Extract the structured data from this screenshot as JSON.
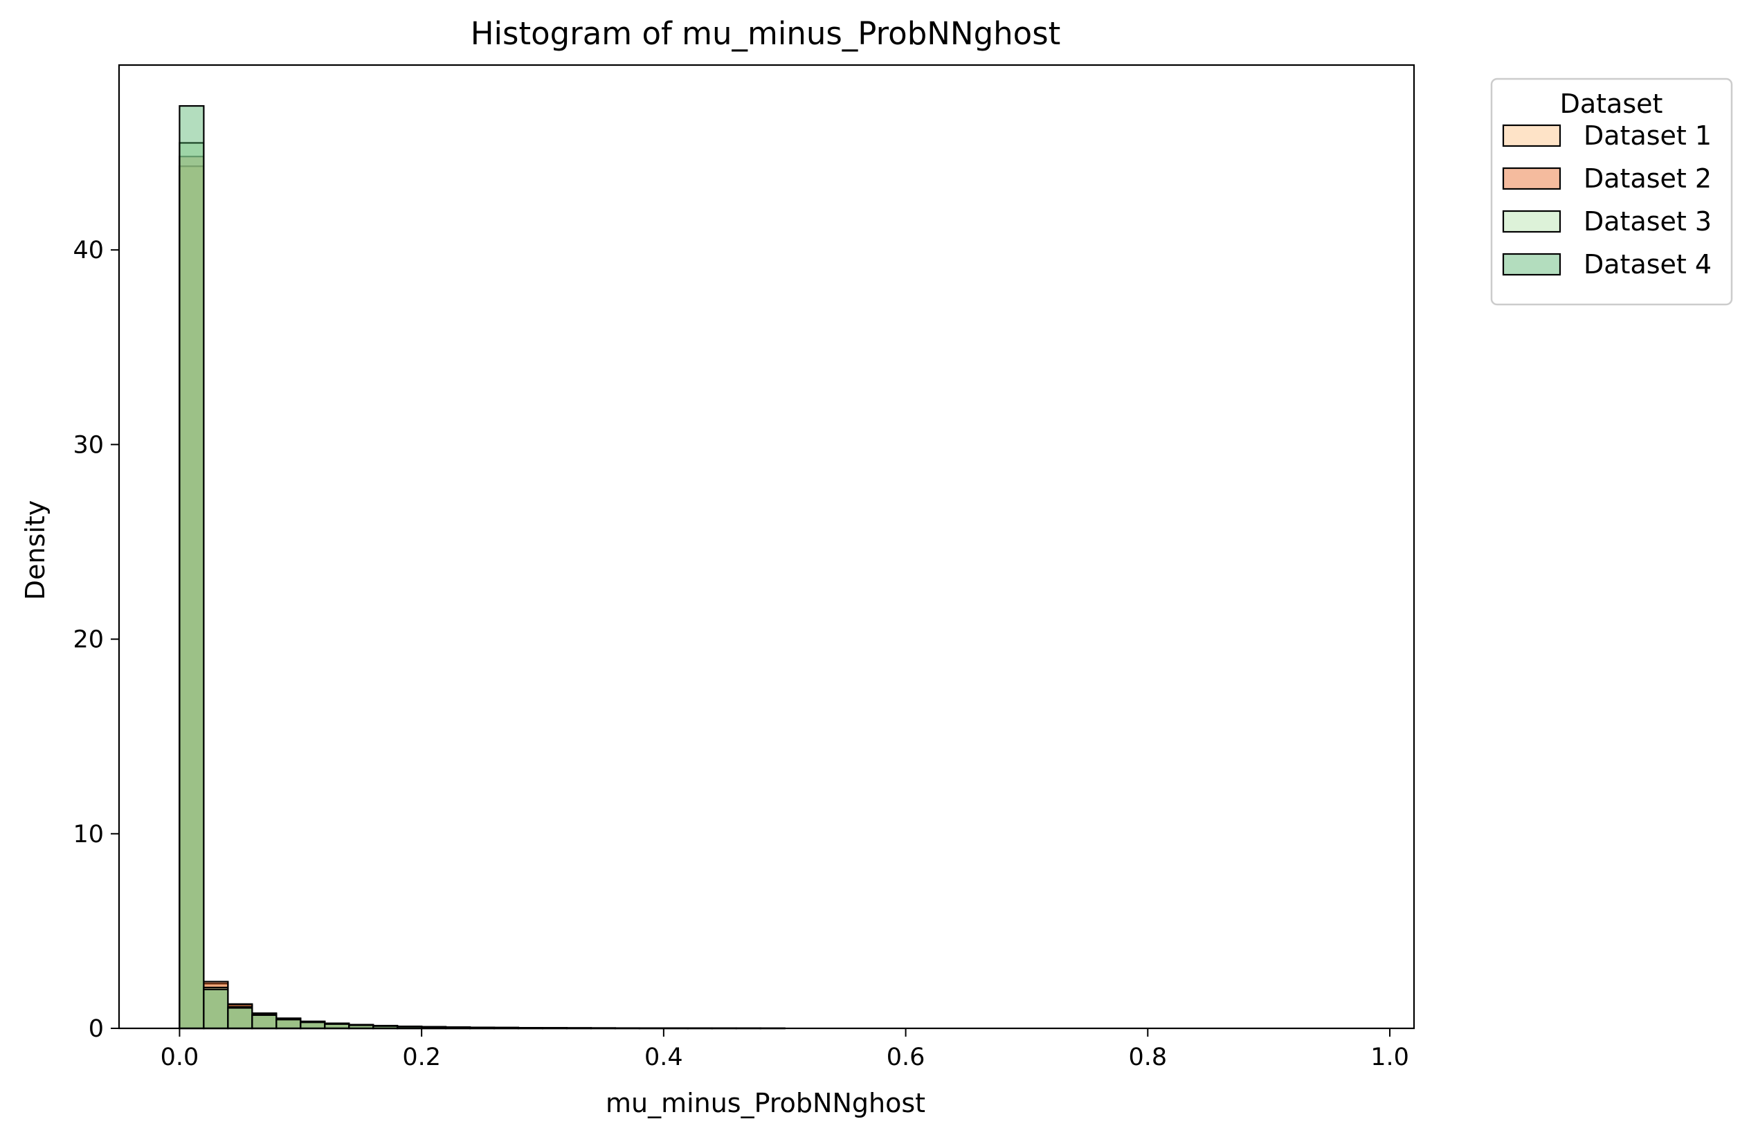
{
  "chart_data": {
    "type": "histogram",
    "title": "Histogram of mu_minus_ProbNNghost",
    "xlabel": "mu_minus_ProbNNghost",
    "ylabel": "Density",
    "xlim": [
      -0.05,
      1.02
    ],
    "ylim": [
      0,
      49.5
    ],
    "xticks": [
      0.0,
      0.2,
      0.4,
      0.6,
      0.8,
      1.0
    ],
    "xtick_labels": [
      "0.0",
      "0.2",
      "0.4",
      "0.6",
      "0.8",
      "1.0"
    ],
    "yticks": [
      0,
      10,
      20,
      30,
      40
    ],
    "ytick_labels": [
      "0",
      "10",
      "20",
      "30",
      "40"
    ],
    "grid": false,
    "bin_edges": [
      0.0,
      0.02,
      0.04,
      0.06,
      0.08,
      0.1,
      0.12,
      0.14,
      0.16,
      0.18,
      0.2,
      0.22,
      0.24,
      0.26,
      0.28,
      0.3,
      0.32,
      0.34,
      0.36,
      0.38,
      0.4,
      0.42,
      0.44,
      0.46,
      0.48,
      0.5
    ],
    "legend": {
      "title": "Dataset",
      "placement": "outside-top-right"
    },
    "series": [
      {
        "name": "Dataset 1",
        "color": "#fdd0a2",
        "opacity": 0.6,
        "values": [
          44.3,
          2.3,
          1.2,
          0.75,
          0.5,
          0.35,
          0.25,
          0.18,
          0.13,
          0.1,
          0.08,
          0.06,
          0.05,
          0.04,
          0.03,
          0.025,
          0.02,
          0.018,
          0.015,
          0.012,
          0.01,
          0.008,
          0.006,
          0.004,
          0.002
        ]
      },
      {
        "name": "Dataset 2",
        "color": "#e6550d",
        "opacity": 0.4,
        "values": [
          44.8,
          2.4,
          1.25,
          0.78,
          0.52,
          0.36,
          0.26,
          0.19,
          0.14,
          0.1,
          0.08,
          0.06,
          0.05,
          0.04,
          0.03,
          0.025,
          0.02,
          0.018,
          0.015,
          0.012,
          0.01,
          0.008,
          0.006,
          0.004,
          0.002
        ]
      },
      {
        "name": "Dataset 3",
        "color": "#c7e9c0",
        "opacity": 0.6,
        "values": [
          45.5,
          2.1,
          1.1,
          0.7,
          0.47,
          0.33,
          0.23,
          0.17,
          0.12,
          0.09,
          0.07,
          0.055,
          0.045,
          0.035,
          0.028,
          0.022,
          0.018,
          0.015,
          0.012,
          0.01,
          0.008,
          0.006,
          0.005,
          0.003,
          0.002
        ]
      },
      {
        "name": "Dataset 4",
        "color": "#41ab5d",
        "opacity": 0.4,
        "values": [
          47.4,
          2.0,
          1.05,
          0.68,
          0.45,
          0.31,
          0.22,
          0.16,
          0.12,
          0.09,
          0.07,
          0.05,
          0.04,
          0.032,
          0.025,
          0.02,
          0.016,
          0.013,
          0.01,
          0.008,
          0.006,
          0.005,
          0.004,
          0.003,
          0.002
        ]
      }
    ]
  }
}
